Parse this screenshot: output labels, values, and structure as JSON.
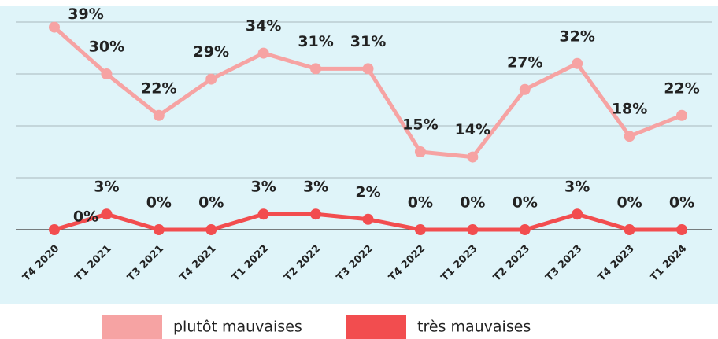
{
  "chart_data": {
    "type": "line",
    "categories": [
      "T4 2020",
      "T1 2021",
      "T3 2021",
      "T4 2021",
      "T1 2022",
      "T2 2022",
      "T3 2022",
      "T4 2022",
      "T1 2023",
      "T2 2023",
      "T3 2023",
      "T4 2023",
      "T1 2024"
    ],
    "series": [
      {
        "name": "plutôt mauvaises",
        "color": "#f6a3a3",
        "values": [
          39,
          30,
          22,
          29,
          34,
          31,
          31,
          15,
          14,
          27,
          32,
          18,
          22
        ],
        "value_labels": [
          "39%",
          "30%",
          "22%",
          "29%",
          "34%",
          "31%",
          "31%",
          "15%",
          "14%",
          "27%",
          "32%",
          "18%",
          "22%"
        ]
      },
      {
        "name": "très mauvaises",
        "color": "#f24d4f",
        "values": [
          0,
          3,
          0,
          0,
          3,
          3,
          2,
          0,
          0,
          0,
          3,
          0,
          0
        ],
        "value_labels": [
          "0%",
          "3%",
          "0%",
          "0%",
          "3%",
          "3%",
          "2%",
          "0%",
          "0%",
          "0%",
          "3%",
          "0%",
          "0%"
        ]
      }
    ],
    "ylim": [
      0,
      40
    ],
    "yticks": [
      0,
      10,
      20,
      30,
      40
    ],
    "grid": true,
    "legend": "bottom"
  }
}
